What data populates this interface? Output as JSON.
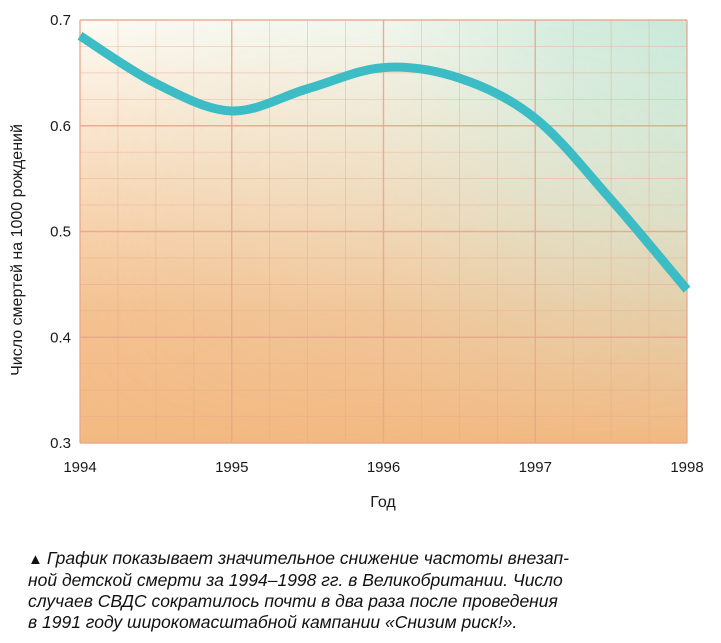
{
  "chart_data": {
    "type": "line",
    "xlabel": "Год",
    "ylabel": "Число смертей на 1000 рождений",
    "x_ticks": [
      "1994",
      "1995",
      "1996",
      "1997",
      "1998"
    ],
    "y_ticks": [
      "0.3",
      "0.4",
      "0.5",
      "0.6",
      "0.7"
    ],
    "xlim": [
      1994,
      1998
    ],
    "ylim": [
      0.3,
      0.7
    ],
    "grid": true,
    "series": [
      {
        "color": "#3cbcc4",
        "x": [
          1994,
          1994.5,
          1995,
          1995.5,
          1996,
          1996.5,
          1997,
          1997.5,
          1998
        ],
        "y": [
          0.685,
          0.64,
          0.614,
          0.635,
          0.655,
          0.645,
          0.607,
          0.53,
          0.445
        ]
      }
    ]
  },
  "caption": {
    "marker": "▲",
    "lines": [
      "График показывает значительное снижение частоты внезап-",
      "ной детской смерти за 1994–1998 гг. в Великобритании. Число",
      "случаев СВДС сократилось почти в два раза после проведения",
      "в 1991 году широкомасштабной кампании «Снизим риск!»."
    ]
  },
  "colors": {
    "line": "#3cbcc4",
    "bg_top_left": "#fdfbf4",
    "bg_bottom": "#f4bc86",
    "bg_top_right": "#d7eedf",
    "grid": "#e7a68c"
  }
}
